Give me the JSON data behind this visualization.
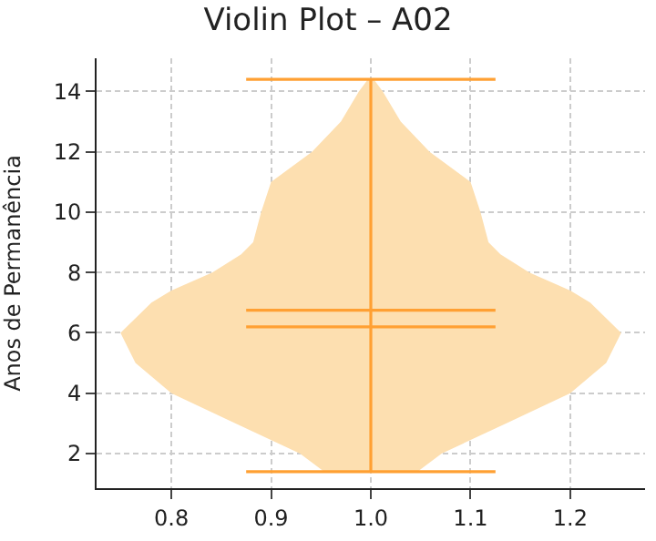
{
  "chart_data": {
    "type": "line",
    "title": "Violin Plot – A02",
    "ylabel": "Anos de Permanência",
    "xlim": [
      0.725,
      1.275
    ],
    "ylim": [
      0.85,
      15.1
    ],
    "xticks": [
      0.8,
      0.9,
      {
        "value": 1.0,
        "label": "1.0"
      },
      1.1,
      1.2
    ],
    "yticks": [
      2,
      4,
      6,
      8,
      10,
      12,
      14
    ],
    "grid": true,
    "series": [
      {
        "type": "area",
        "color": "#fddfb0",
        "x": [
          1.047,
          1.071,
          1.136,
          1.2,
          1.236,
          1.251,
          1.22,
          1.2,
          1.159,
          1.13,
          1.118,
          1.11,
          1.1,
          1.059,
          1.03,
          1.012,
          1.003,
          0.997,
          0.988,
          0.97,
          0.941,
          0.9,
          0.89,
          0.882,
          0.87,
          0.841,
          0.8,
          0.78,
          0.749,
          0.764,
          0.8,
          0.864,
          0.929,
          0.953
        ],
        "values": [
          1.4,
          2,
          3,
          4,
          5,
          6,
          7,
          7.4,
          8,
          8.6,
          9,
          10,
          11,
          12,
          13,
          14,
          14.4,
          14.4,
          14,
          13,
          12,
          11,
          10,
          9,
          8.6,
          8,
          7.4,
          7,
          6,
          5,
          4,
          3,
          2,
          1.4
        ]
      },
      {
        "color": "#ffa033",
        "x": [
          0.875,
          1.125
        ],
        "values": [
          14.4,
          14.4
        ]
      },
      {
        "color": "#ffa033",
        "x": [
          0.875,
          1.125
        ],
        "values": [
          1.4,
          1.4
        ]
      },
      {
        "color": "#ffa033",
        "x": [
          0.875,
          1.125
        ],
        "values": [
          6.75,
          6.75
        ]
      },
      {
        "color": "#ffa033",
        "x": [
          0.875,
          1.125
        ],
        "values": [
          6.2,
          6.2
        ]
      },
      {
        "color": "#ffa033",
        "x": [
          1.0,
          1.0
        ],
        "values": [
          1.4,
          14.4
        ]
      }
    ]
  }
}
